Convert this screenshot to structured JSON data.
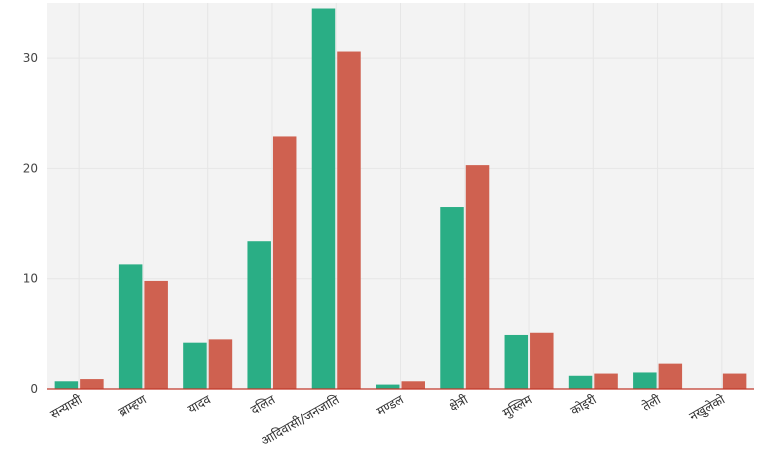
{
  "chart_data": {
    "type": "bar",
    "categories": [
      "सन्यासी",
      "ब्राम्हण",
      "यादव",
      "दलित",
      "आदिवासी/जनजाति",
      "मण्डल",
      "क्षेत्री",
      "मुस्लिम",
      "कोइरी",
      "तेली",
      "नखुलेको"
    ],
    "series": [
      {
        "values": [
          0.7,
          11.3,
          4.2,
          13.4,
          34.5,
          0.4,
          16.5,
          4.9,
          1.2,
          1.5,
          0
        ]
      },
      {
        "values": [
          0.9,
          9.8,
          4.5,
          22.9,
          30.6,
          0.7,
          20.3,
          5.1,
          1.4,
          2.3,
          1.4
        ]
      }
    ],
    "yticks": [
      0,
      10,
      20,
      30
    ],
    "ylim": [
      0,
      35
    ],
    "grid": true,
    "colors": {
      "series": [
        "#2aae85",
        "#cf6150"
      ],
      "background": "#f3f3f3",
      "grid": "#e6e6e6",
      "axis": "#c0392b"
    }
  }
}
